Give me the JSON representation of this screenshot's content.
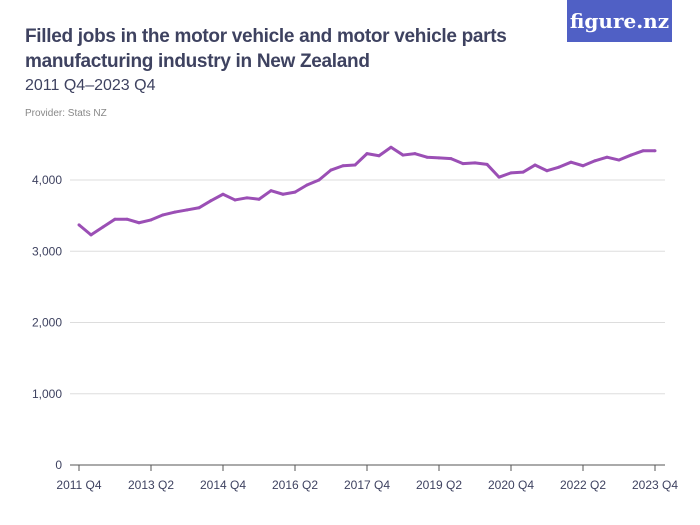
{
  "title": "Filled jobs in the motor vehicle and motor vehicle parts manufacturing industry in New Zealand",
  "subtitle": "2011 Q4–2023 Q4",
  "provider": "Provider: Stats NZ",
  "logo": "figure.nz",
  "colors": {
    "line": "#9b4fb5",
    "logo_bg": "#5060c5",
    "grid": "#dddddd"
  },
  "chart_data": {
    "type": "line",
    "title": "Filled jobs in the motor vehicle and motor vehicle parts manufacturing industry in New Zealand",
    "subtitle": "2011 Q4–2023 Q4",
    "xlabel": "",
    "ylabel": "",
    "ylim": [
      0,
      4000
    ],
    "yticks": [
      "0",
      "1,000",
      "2,000",
      "3,000",
      "4,000"
    ],
    "ytick_values": [
      0,
      1000,
      2000,
      3000,
      4000
    ],
    "xtick_labels": [
      "2011 Q4",
      "2013 Q2",
      "2014 Q4",
      "2016 Q2",
      "2017 Q4",
      "2019 Q2",
      "2020 Q4",
      "2022 Q2",
      "2023 Q4"
    ],
    "grid": true,
    "x_start": "2011 Q4",
    "x_end": "2023 Q4",
    "values": [
      3370,
      3230,
      3340,
      3450,
      3450,
      3400,
      3440,
      3510,
      3550,
      3580,
      3610,
      3710,
      3800,
      3720,
      3750,
      3730,
      3850,
      3800,
      3830,
      3930,
      4000,
      4140,
      4200,
      4210,
      4370,
      4340,
      4460,
      4350,
      4370,
      4320,
      4310,
      4300,
      4230,
      4240,
      4220,
      4040,
      4100,
      4110,
      4210,
      4130,
      4180,
      4250,
      4200,
      4270,
      4320,
      4280,
      4350,
      4410,
      4410
    ]
  }
}
